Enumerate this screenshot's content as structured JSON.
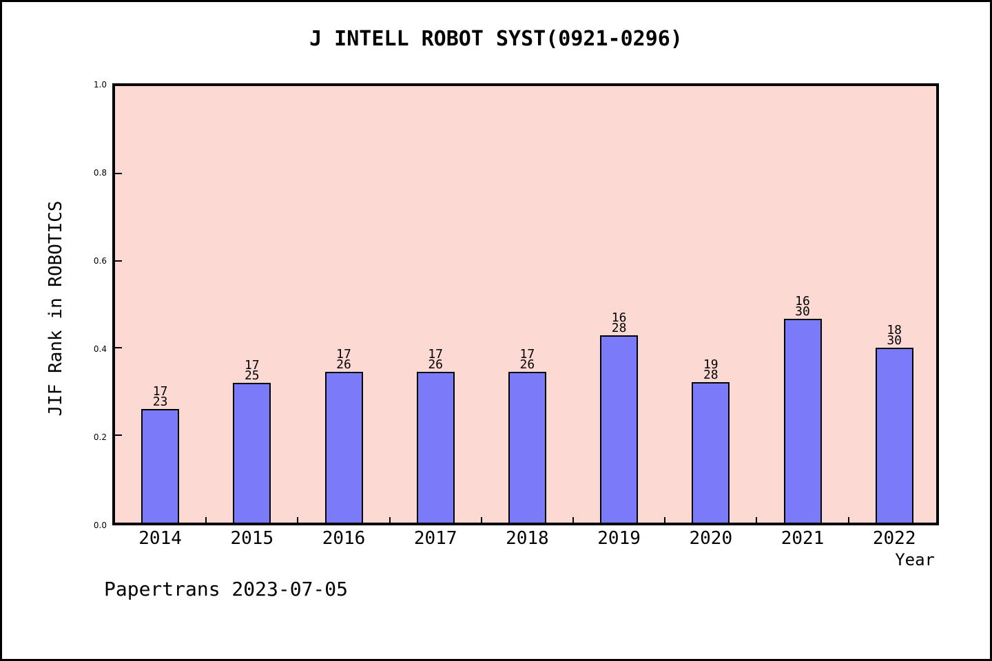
{
  "chart_data": {
    "type": "bar",
    "title": "J INTELL ROBOT SYST(0921-0296)",
    "xlabel": "Year",
    "ylabel": "JIF Rank in ROBOTICS",
    "footer": "Papertrans 2023-07-05",
    "categories": [
      "2014",
      "2015",
      "2016",
      "2017",
      "2018",
      "2019",
      "2020",
      "2021",
      "2022"
    ],
    "bars": [
      {
        "year": 2014,
        "rank": "17",
        "total": "23",
        "value": 0.2609
      },
      {
        "year": 2015,
        "rank": "17",
        "total": "25",
        "value": 0.32
      },
      {
        "year": 2016,
        "rank": "17",
        "total": "26",
        "value": 0.3462
      },
      {
        "year": 2017,
        "rank": "17",
        "total": "26",
        "value": 0.3462
      },
      {
        "year": 2018,
        "rank": "17",
        "total": "26",
        "value": 0.3462
      },
      {
        "year": 2019,
        "rank": "16",
        "total": "28",
        "value": 0.4286
      },
      {
        "year": 2020,
        "rank": "19",
        "total": "28",
        "value": 0.3214
      },
      {
        "year": 2021,
        "rank": "16",
        "total": "30",
        "value": 0.4667
      },
      {
        "year": 2022,
        "rank": "18",
        "total": "30",
        "value": 0.4
      }
    ],
    "ylim": [
      0.0,
      1.0
    ],
    "yticks": [
      "0.0",
      "0.2",
      "0.4",
      "0.6",
      "0.8",
      "1.0"
    ],
    "grid": false,
    "legend": "none",
    "colors": {
      "bar_fill": "#7B7BFA",
      "bar_edge": "#000000",
      "plot_background": "#FDD9D4",
      "page_background": "#FFFFFF",
      "text": "#000000"
    }
  }
}
